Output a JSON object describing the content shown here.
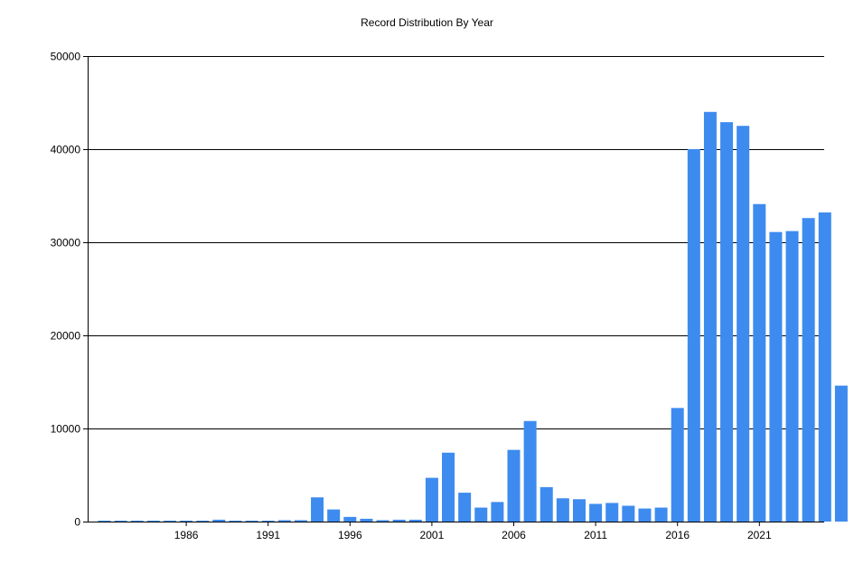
{
  "chart_data": {
    "type": "bar",
    "title": "Record Distribution By Year",
    "xlabel": "",
    "ylabel": "",
    "ylim": [
      0,
      50000
    ],
    "yticks": [
      0,
      10000,
      20000,
      30000,
      40000,
      50000
    ],
    "xtick_labels": [
      "1986",
      "1991",
      "1996",
      "2001",
      "2006",
      "2011",
      "2016",
      "2021"
    ],
    "grid": "horizontal",
    "bar_color": "#3D8BEF",
    "categories": [
      1981,
      1982,
      1983,
      1984,
      1985,
      1986,
      1987,
      1988,
      1989,
      1990,
      1991,
      1992,
      1993,
      1994,
      1995,
      1996,
      1997,
      1998,
      1999,
      2000,
      2001,
      2002,
      2003,
      2004,
      2005,
      2006,
      2007,
      2008,
      2009,
      2010,
      2011,
      2012,
      2013,
      2014,
      2015,
      2016,
      2017,
      2018,
      2019,
      2020,
      2021,
      2022,
      2023,
      2024,
      2025,
      2026
    ],
    "values": [
      100,
      100,
      100,
      100,
      100,
      100,
      100,
      200,
      100,
      100,
      100,
      150,
      150,
      2600,
      1300,
      500,
      300,
      150,
      200,
      200,
      4700,
      7400,
      3100,
      1500,
      2100,
      7700,
      10800,
      3700,
      2500,
      2400,
      1900,
      2000,
      1700,
      1400,
      1500,
      12200,
      40000,
      44000,
      42900,
      42500,
      34100,
      31100,
      31200,
      32600,
      33200,
      14600
    ]
  }
}
